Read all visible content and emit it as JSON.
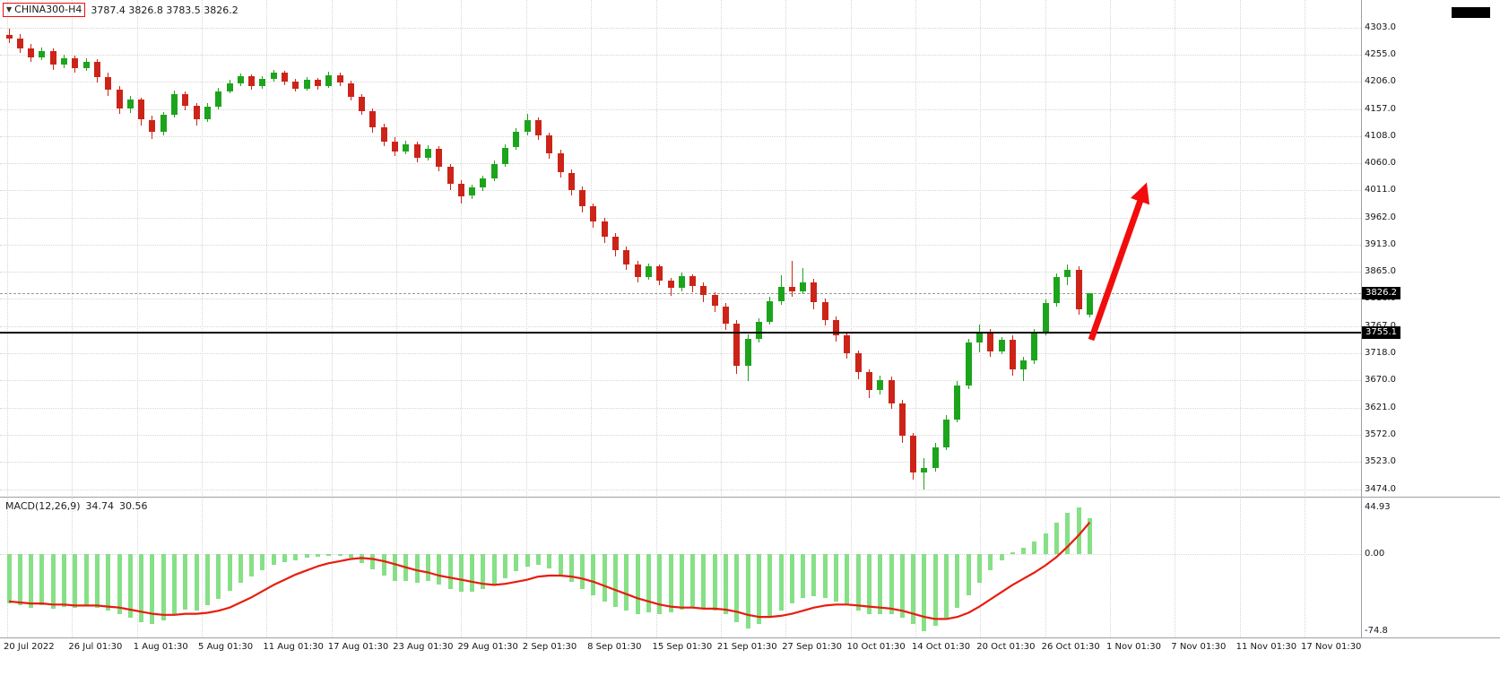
{
  "header": {
    "symbol": "CHINA300-H4",
    "ohlc": "3787.4 3826.8 3783.5 3826.2",
    "dropdown_icon": "▼"
  },
  "chart_data": {
    "type": "candlestick",
    "title": "CHINA300-H4",
    "timeframe": "H4",
    "ylim": [
      3474.0,
      4303.0
    ],
    "last_price": "3826.2",
    "hline_price": "3755.1",
    "grid": "dotted",
    "legend_position": "none",
    "price_axis_ticks": [
      "4303.0",
      "4255.0",
      "4206.0",
      "4157.0",
      "4108.0",
      "4060.0",
      "4011.0",
      "3962.0",
      "3913.0",
      "3865.0",
      "3816.0",
      "3767.0",
      "3718.0",
      "3670.0",
      "3621.0",
      "3572.0",
      "3523.0",
      "3474.0"
    ],
    "time_axis_labels": [
      "20 Jul 2022",
      "26 Jul 01:30",
      "1 Aug 01:30",
      "5 Aug 01:30",
      "11 Aug 01:30",
      "17 Aug 01:30",
      "23 Aug 01:30",
      "29 Aug 01:30",
      "2 Sep 01:30",
      "8 Sep 01:30",
      "15 Sep 01:30",
      "21 Sep 01:30",
      "27 Sep 01:30",
      "10 Oct 01:30",
      "14 Oct 01:30",
      "20 Oct 01:30",
      "26 Oct 01:30",
      "1 Nov 01:30",
      "7 Nov 01:30",
      "11 Nov 01:30",
      "17 Nov 01:30"
    ],
    "candles_ohlc": [
      [
        4290,
        4302,
        4275,
        4283
      ],
      [
        4283,
        4292,
        4258,
        4266
      ],
      [
        4266,
        4274,
        4242,
        4250
      ],
      [
        4250,
        4268,
        4245,
        4262
      ],
      [
        4262,
        4266,
        4228,
        4237
      ],
      [
        4237,
        4255,
        4231,
        4249
      ],
      [
        4249,
        4253,
        4222,
        4231
      ],
      [
        4231,
        4248,
        4225,
        4242
      ],
      [
        4242,
        4246,
        4205,
        4215
      ],
      [
        4215,
        4222,
        4180,
        4192
      ],
      [
        4192,
        4198,
        4148,
        4158
      ],
      [
        4158,
        4180,
        4150,
        4174
      ],
      [
        4174,
        4178,
        4128,
        4138
      ],
      [
        4138,
        4145,
        4103,
        4116
      ],
      [
        4116,
        4152,
        4110,
        4147
      ],
      [
        4147,
        4190,
        4142,
        4184
      ],
      [
        4184,
        4188,
        4155,
        4163
      ],
      [
        4163,
        4168,
        4128,
        4139
      ],
      [
        4139,
        4168,
        4134,
        4161
      ],
      [
        4161,
        4195,
        4157,
        4189
      ],
      [
        4189,
        4210,
        4185,
        4204
      ],
      [
        4204,
        4221,
        4198,
        4216
      ],
      [
        4216,
        4220,
        4192,
        4199
      ],
      [
        4199,
        4216,
        4194,
        4211
      ],
      [
        4211,
        4228,
        4206,
        4222
      ],
      [
        4222,
        4226,
        4200,
        4207
      ],
      [
        4207,
        4212,
        4188,
        4194
      ],
      [
        4194,
        4214,
        4190,
        4209
      ],
      [
        4209,
        4213,
        4192,
        4199
      ],
      [
        4199,
        4224,
        4195,
        4218
      ],
      [
        4218,
        4222,
        4198,
        4204
      ],
      [
        4204,
        4208,
        4172,
        4179
      ],
      [
        4179,
        4184,
        4146,
        4153
      ],
      [
        4153,
        4158,
        4115,
        4124
      ],
      [
        4124,
        4130,
        4090,
        4099
      ],
      [
        4099,
        4106,
        4072,
        4081
      ],
      [
        4081,
        4100,
        4076,
        4094
      ],
      [
        4094,
        4098,
        4062,
        4069
      ],
      [
        4069,
        4092,
        4064,
        4086
      ],
      [
        4086,
        4090,
        4046,
        4053
      ],
      [
        4053,
        4058,
        4012,
        4023
      ],
      [
        4023,
        4030,
        3988,
        4001
      ],
      [
        4001,
        4022,
        3996,
        4016
      ],
      [
        4016,
        4038,
        4010,
        4032
      ],
      [
        4032,
        4064,
        4028,
        4058
      ],
      [
        4058,
        4094,
        4054,
        4088
      ],
      [
        4088,
        4122,
        4084,
        4116
      ],
      [
        4116,
        4148,
        4110,
        4137
      ],
      [
        4137,
        4142,
        4102,
        4110
      ],
      [
        4110,
        4115,
        4068,
        4078
      ],
      [
        4078,
        4084,
        4034,
        4043
      ],
      [
        4043,
        4048,
        4002,
        4012
      ],
      [
        4012,
        4018,
        3972,
        3982
      ],
      [
        3982,
        3988,
        3944,
        3955
      ],
      [
        3955,
        3962,
        3916,
        3928
      ],
      [
        3928,
        3934,
        3892,
        3903
      ],
      [
        3903,
        3910,
        3868,
        3878
      ],
      [
        3878,
        3884,
        3845,
        3856
      ],
      [
        3856,
        3880,
        3850,
        3874
      ],
      [
        3874,
        3878,
        3840,
        3849
      ],
      [
        3849,
        3854,
        3822,
        3836
      ],
      [
        3836,
        3864,
        3830,
        3857
      ],
      [
        3857,
        3861,
        3828,
        3840
      ],
      [
        3840,
        3845,
        3810,
        3823
      ],
      [
        3823,
        3828,
        3792,
        3803
      ],
      [
        3803,
        3808,
        3760,
        3772
      ],
      [
        3772,
        3778,
        3682,
        3696
      ],
      [
        3696,
        3752,
        3668,
        3744
      ],
      [
        3744,
        3782,
        3738,
        3775
      ],
      [
        3775,
        3820,
        3770,
        3812
      ],
      [
        3812,
        3858,
        3806,
        3838
      ],
      [
        3838,
        3884,
        3820,
        3830
      ],
      [
        3830,
        3872,
        3824,
        3845
      ],
      [
        3845,
        3852,
        3798,
        3810
      ],
      [
        3810,
        3816,
        3768,
        3778
      ],
      [
        3778,
        3784,
        3740,
        3750
      ],
      [
        3750,
        3756,
        3708,
        3718
      ],
      [
        3718,
        3724,
        3672,
        3684
      ],
      [
        3684,
        3690,
        3638,
        3652
      ],
      [
        3652,
        3678,
        3644,
        3670
      ],
      [
        3670,
        3676,
        3618,
        3628
      ],
      [
        3628,
        3634,
        3558,
        3570
      ],
      [
        3570,
        3576,
        3492,
        3504
      ],
      [
        3504,
        3530,
        3474,
        3512
      ],
      [
        3512,
        3558,
        3506,
        3550
      ],
      [
        3550,
        3608,
        3544,
        3600
      ],
      [
        3600,
        3668,
        3594,
        3660
      ],
      [
        3660,
        3745,
        3654,
        3738
      ],
      [
        3738,
        3770,
        3720,
        3755
      ],
      [
        3755,
        3762,
        3712,
        3722
      ],
      [
        3722,
        3748,
        3716,
        3742
      ],
      [
        3742,
        3750,
        3678,
        3690
      ],
      [
        3690,
        3712,
        3668,
        3706
      ],
      [
        3706,
        3762,
        3700,
        3755
      ],
      [
        3755,
        3815,
        3750,
        3808
      ],
      [
        3808,
        3862,
        3802,
        3855
      ],
      [
        3855,
        3878,
        3840,
        3868
      ],
      [
        3868,
        3874,
        3788,
        3798
      ],
      [
        3787.4,
        3826.8,
        3783.5,
        3826.2
      ]
    ],
    "macd": {
      "label": "MACD(12,26,9)",
      "main_value": "34.74",
      "signal_value": "30.56",
      "axis_ticks": [
        "44.93",
        "0.00",
        "-74.8"
      ],
      "histogram": [
        -48,
        -50,
        -52,
        -50,
        -53,
        -51,
        -52,
        -50,
        -52,
        -55,
        -58,
        -62,
        -66,
        -68,
        -64,
        -58,
        -54,
        -55,
        -50,
        -44,
        -36,
        -28,
        -22,
        -16,
        -11,
        -8,
        -6,
        -4,
        -3,
        -2,
        -2,
        -4,
        -9,
        -15,
        -21,
        -26,
        -26,
        -28,
        -26,
        -30,
        -34,
        -37,
        -37,
        -34,
        -30,
        -24,
        -17,
        -12,
        -11,
        -14,
        -20,
        -27,
        -34,
        -40,
        -46,
        -51,
        -55,
        -58,
        -57,
        -58,
        -57,
        -54,
        -52,
        -53,
        -55,
        -58,
        -66,
        -72,
        -68,
        -62,
        -55,
        -48,
        -43,
        -41,
        -43,
        -46,
        -50,
        -55,
        -58,
        -58,
        -58,
        -62,
        -68,
        -74.8,
        -70,
        -62,
        -52,
        -40,
        -28,
        -16,
        -6,
        2,
        6,
        12,
        20,
        30,
        40,
        44.93,
        34.74
      ],
      "signal": [
        -46,
        -47,
        -48,
        -48,
        -49,
        -49,
        -50,
        -50,
        -50,
        -51,
        -52,
        -54,
        -56,
        -58,
        -59,
        -59,
        -58,
        -58,
        -57,
        -55,
        -52,
        -47,
        -42,
        -36,
        -30,
        -25,
        -20,
        -16,
        -12,
        -9,
        -7,
        -5,
        -4,
        -5,
        -7,
        -10,
        -13,
        -16,
        -18,
        -21,
        -23,
        -25,
        -27,
        -29,
        -30,
        -29,
        -27,
        -25,
        -22,
        -21,
        -21,
        -22,
        -24,
        -27,
        -31,
        -35,
        -39,
        -43,
        -46,
        -49,
        -51,
        -52,
        -52,
        -53,
        -53,
        -54,
        -56,
        -59,
        -61,
        -61,
        -60,
        -58,
        -55,
        -52,
        -50,
        -49,
        -49,
        -50,
        -51,
        -52,
        -53,
        -55,
        -58,
        -61,
        -63,
        -63,
        -61,
        -57,
        -51,
        -44,
        -37,
        -30,
        -24,
        -18,
        -11,
        -3,
        7,
        18,
        30.56
      ]
    },
    "annotations": [
      {
        "type": "horizontal-line",
        "value": 3755.1,
        "color": "#000000"
      },
      {
        "type": "arrow-up-right",
        "color": "#f20d0d"
      },
      {
        "type": "rectangle-outline-around-symbol",
        "color": "#f20d0d"
      }
    ]
  },
  "colors": {
    "bull": "#1ca41c",
    "bear": "#cc2418",
    "macd_bar": "#86e086",
    "macd_signal": "#e81c0e",
    "grid": "#d6d6d6",
    "hline": "#000000",
    "arrow": "#f20d0d",
    "badge_bg": "#000000",
    "badge_fg": "#ffffff"
  }
}
